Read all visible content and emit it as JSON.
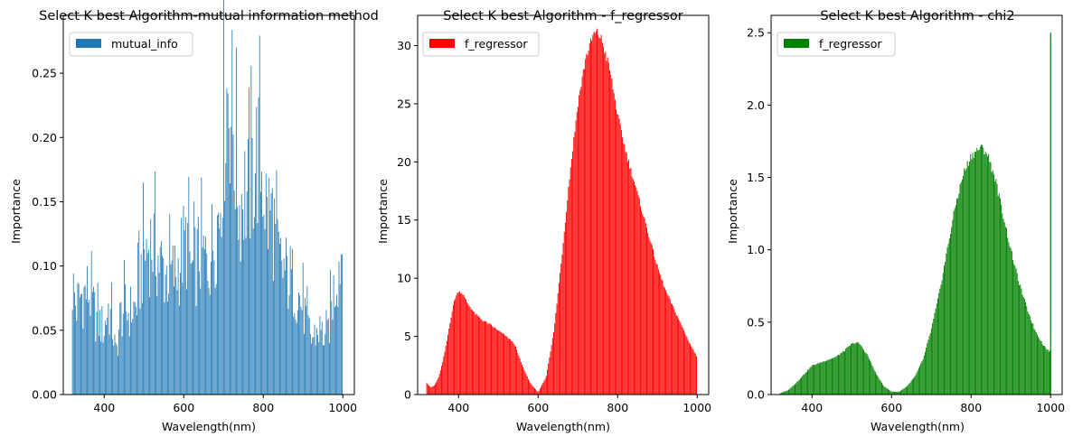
{
  "chart_data": [
    {
      "type": "bar",
      "title": "Select K best Algorithm-mutual information method",
      "xlabel": "Wavelength(nm)",
      "ylabel": "Importance",
      "xlim": [
        297,
        1029
      ],
      "ylim": [
        0,
        0.295
      ],
      "xticks": [
        400,
        600,
        800,
        1000
      ],
      "yticks": [
        0.0,
        0.05,
        0.1,
        0.15,
        0.2,
        0.25
      ],
      "ytick_labels": [
        "0.00",
        "0.05",
        "0.10",
        "0.15",
        "0.20",
        "0.25"
      ],
      "color": "#1f77b4",
      "legend": {
        "position": "top-left",
        "entries": [
          {
            "label": "mutual_info",
            "color": "#1f77b4"
          }
        ]
      },
      "profile_x": [
        320,
        330,
        340,
        360,
        380,
        400,
        410,
        420,
        430,
        440,
        450,
        460,
        480,
        500,
        520,
        540,
        560,
        580,
        600,
        610,
        620,
        640,
        660,
        680,
        690,
        700,
        710,
        720,
        740,
        750,
        760,
        780,
        790,
        800,
        810,
        820,
        840,
        860,
        880,
        900,
        920,
        940,
        960,
        975,
        990,
        1000
      ],
      "profile_y": [
        0.1,
        0.08,
        0.09,
        0.095,
        0.07,
        0.06,
        0.08,
        0.065,
        0.035,
        0.07,
        0.08,
        0.075,
        0.08,
        0.13,
        0.14,
        0.12,
        0.11,
        0.11,
        0.135,
        0.14,
        0.11,
        0.13,
        0.12,
        0.15,
        0.17,
        0.245,
        0.28,
        0.265,
        0.17,
        0.19,
        0.18,
        0.215,
        0.22,
        0.2,
        0.16,
        0.17,
        0.12,
        0.11,
        0.1,
        0.08,
        0.05,
        0.06,
        0.05,
        0.09,
        0.12,
        0.14
      ]
    },
    {
      "type": "bar",
      "title": "Select K best Algorithm - f_regressor",
      "xlabel": "Wavelength(nm)",
      "ylabel": "Importance",
      "xlim": [
        297,
        1029
      ],
      "ylim": [
        0,
        32.6
      ],
      "xticks": [
        400,
        600,
        800,
        1000
      ],
      "yticks": [
        0,
        5,
        10,
        15,
        20,
        25,
        30
      ],
      "ytick_labels": [
        "0",
        "5",
        "10",
        "15",
        "20",
        "25",
        "30"
      ],
      "color": "#ff0000",
      "legend": {
        "position": "top-left",
        "entries": [
          {
            "label": "f_regressor",
            "color": "#ff0000"
          }
        ]
      },
      "profile_x": [
        320,
        330,
        340,
        350,
        360,
        370,
        380,
        390,
        400,
        410,
        420,
        440,
        460,
        480,
        500,
        520,
        540,
        560,
        580,
        600,
        620,
        640,
        660,
        680,
        700,
        720,
        740,
        750,
        760,
        780,
        800,
        820,
        840,
        860,
        880,
        900,
        920,
        940,
        960,
        980,
        1000
      ],
      "profile_y": [
        1.0,
        0.6,
        0.8,
        1.5,
        2.8,
        4.5,
        6.5,
        8.2,
        8.9,
        8.7,
        8.0,
        7.0,
        6.4,
        6.0,
        5.5,
        5.0,
        4.4,
        2.5,
        1.0,
        0.2,
        1.5,
        5.5,
        12.0,
        19.0,
        25.0,
        29.0,
        31.0,
        31.1,
        30.5,
        28.0,
        24.0,
        21.0,
        18.5,
        16.0,
        13.5,
        11.0,
        9.0,
        7.5,
        6.0,
        4.5,
        3.2
      ]
    },
    {
      "type": "bar",
      "title": "Select K best Algorithm - chi2",
      "xlabel": "Wavelength(nm)",
      "ylabel": "Importance",
      "xlim": [
        297,
        1029
      ],
      "ylim": [
        0,
        2.62
      ],
      "xticks": [
        400,
        600,
        800,
        1000
      ],
      "yticks": [
        0.0,
        0.5,
        1.0,
        1.5,
        2.0,
        2.5
      ],
      "ytick_labels": [
        "0.0",
        "0.5",
        "1.0",
        "1.5",
        "2.0",
        "2.5"
      ],
      "color": "#008000",
      "legend": {
        "position": "top-left",
        "entries": [
          {
            "label": "f_regressor",
            "color": "#008000"
          }
        ]
      },
      "profile_x": [
        320,
        340,
        360,
        380,
        400,
        420,
        440,
        460,
        480,
        500,
        510,
        520,
        540,
        560,
        580,
        600,
        620,
        640,
        660,
        680,
        700,
        720,
        740,
        760,
        780,
        800,
        820,
        830,
        840,
        860,
        880,
        900,
        920,
        940,
        960,
        980,
        995
      ],
      "profile_y": [
        0.01,
        0.03,
        0.08,
        0.14,
        0.2,
        0.22,
        0.24,
        0.26,
        0.3,
        0.35,
        0.36,
        0.35,
        0.27,
        0.15,
        0.06,
        0.02,
        0.02,
        0.06,
        0.13,
        0.25,
        0.45,
        0.7,
        1.0,
        1.3,
        1.52,
        1.65,
        1.7,
        1.7,
        1.67,
        1.5,
        1.25,
        1.0,
        0.78,
        0.6,
        0.45,
        0.35,
        0.3
      ],
      "outlier": {
        "x": 1000,
        "y": 2.5
      }
    }
  ]
}
